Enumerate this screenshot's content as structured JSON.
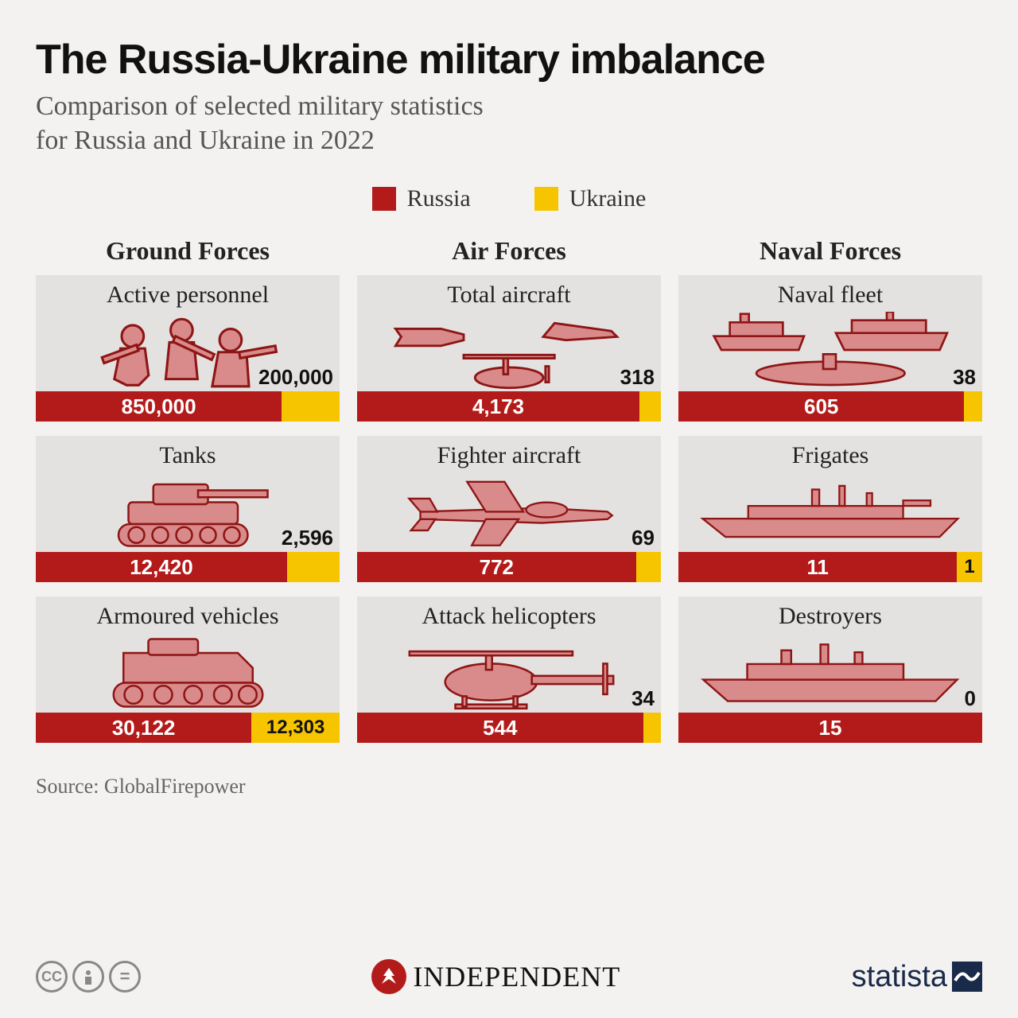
{
  "title": "The Russia-Ukraine military imbalance",
  "subtitle": "Comparison of selected military statistics\nfor Russia and Ukraine in 2022",
  "legend": {
    "russia": {
      "label": "Russia",
      "color": "#b31b1b"
    },
    "ukraine": {
      "label": "Ukraine",
      "color": "#f6c500"
    }
  },
  "columns": [
    {
      "header": "Ground Forces"
    },
    {
      "header": "Air Forces"
    },
    {
      "header": "Naval Forces"
    }
  ],
  "cards": [
    {
      "title": "Active personnel",
      "russia_value": "850,000",
      "russia_num": 850000,
      "ukraine_value": "200,000",
      "ukraine_num": 200000,
      "russia_pct": 80.95,
      "ukraine_pct": 19.05,
      "ua_inside": false,
      "icon": "soldiers"
    },
    {
      "title": "Total aircraft",
      "russia_value": "4,173",
      "russia_num": 4173,
      "ukraine_value": "318",
      "ukraine_num": 318,
      "russia_pct": 92.92,
      "ukraine_pct": 7.08,
      "ua_inside": false,
      "icon": "aircraft-mix"
    },
    {
      "title": "Naval fleet",
      "russia_value": "605",
      "russia_num": 605,
      "ukraine_value": "38",
      "ukraine_num": 38,
      "russia_pct": 94.09,
      "ukraine_pct": 5.91,
      "ua_inside": false,
      "icon": "naval-mix"
    },
    {
      "title": "Tanks",
      "russia_value": "12,420",
      "russia_num": 12420,
      "ukraine_value": "2,596",
      "ukraine_num": 2596,
      "russia_pct": 82.71,
      "ukraine_pct": 17.29,
      "ua_inside": false,
      "icon": "tank"
    },
    {
      "title": "Fighter aircraft",
      "russia_value": "772",
      "russia_num": 772,
      "ukraine_value": "69",
      "ukraine_num": 69,
      "russia_pct": 91.8,
      "ukraine_pct": 8.2,
      "ua_inside": false,
      "icon": "fighter"
    },
    {
      "title": "Frigates",
      "russia_value": "11",
      "russia_num": 11,
      "ukraine_value": "1",
      "ukraine_num": 1,
      "russia_pct": 91.67,
      "ukraine_pct": 8.33,
      "ua_inside": true,
      "icon": "frigate"
    },
    {
      "title": "Armoured vehicles",
      "russia_value": "30,122",
      "russia_num": 30122,
      "ukraine_value": "12,303",
      "ukraine_num": 12303,
      "russia_pct": 71.0,
      "ukraine_pct": 29.0,
      "ua_inside": true,
      "icon": "apc"
    },
    {
      "title": "Attack helicopters",
      "russia_value": "544",
      "russia_num": 544,
      "ukraine_value": "34",
      "ukraine_num": 34,
      "russia_pct": 94.12,
      "ukraine_pct": 5.88,
      "ua_inside": false,
      "icon": "helicopter"
    },
    {
      "title": "Destroyers",
      "russia_value": "15",
      "russia_num": 15,
      "ukraine_value": "0",
      "ukraine_num": 0,
      "russia_pct": 100,
      "ukraine_pct": 0,
      "ua_inside": false,
      "icon": "destroyer"
    }
  ],
  "source": "Source: GlobalFirepower",
  "footer": {
    "independent": "INDEPENDENT",
    "statista": "statista"
  },
  "style": {
    "background": "#f3f2f0",
    "card_bg": "#e4e2e0",
    "icon_fill": "#d98a8a",
    "icon_stroke": "#8e1515",
    "title_color": "#111111",
    "subtitle_color": "#555555"
  }
}
